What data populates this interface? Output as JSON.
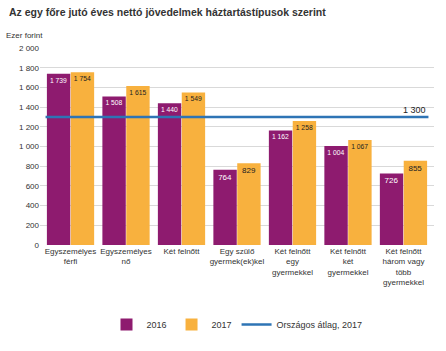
{
  "chart_data": {
    "type": "bar",
    "title": "Az egy főre jutó éves nettó jövedelmek háztartástípusok szerint",
    "y_label": "Ezer forint",
    "categories": [
      "Egyszemélyes férfi",
      "Egyszemélyes nő",
      "Két felnőtt",
      "Egy szülő gyermek(ek)kel",
      "Két felnőtt egy gyermekkel",
      "Két felnőtt két gyermekkel",
      "Két felnőtt három vagy több gyermekkel"
    ],
    "series": [
      {
        "name": "2016",
        "color": "#8e1b6f",
        "values": [
          1739,
          1508,
          1440,
          764,
          1162,
          1004,
          726
        ],
        "value_labels": [
          "1 739",
          "1 508",
          "1 440",
          "764",
          "1 162",
          "1 004",
          "726"
        ]
      },
      {
        "name": "2017",
        "color": "#f8b13e",
        "values": [
          1754,
          1615,
          1549,
          829,
          1258,
          1067,
          855
        ],
        "value_labels": [
          "1 754",
          "1 615",
          "1 549",
          "829",
          "1 258",
          "1 067",
          "855"
        ]
      }
    ],
    "reference_line": {
      "name": "Országos átlag, 2017",
      "value": 1300,
      "label": "1 300",
      "color": "#2e74b5"
    },
    "ylim": [
      0,
      2000
    ],
    "yticks": [
      0,
      200,
      400,
      600,
      800,
      {
        "value": 1000,
        "label": "1 000"
      },
      {
        "value": 1200,
        "label": "1 200"
      },
      {
        "value": 1400,
        "label": "1 400"
      },
      {
        "value": 1600,
        "label": "1 600"
      },
      {
        "value": 1800,
        "label": "1 800"
      },
      {
        "value": 2000,
        "label": "2 000"
      }
    ],
    "grid": true,
    "data_labels": true,
    "legend": "bottom"
  }
}
